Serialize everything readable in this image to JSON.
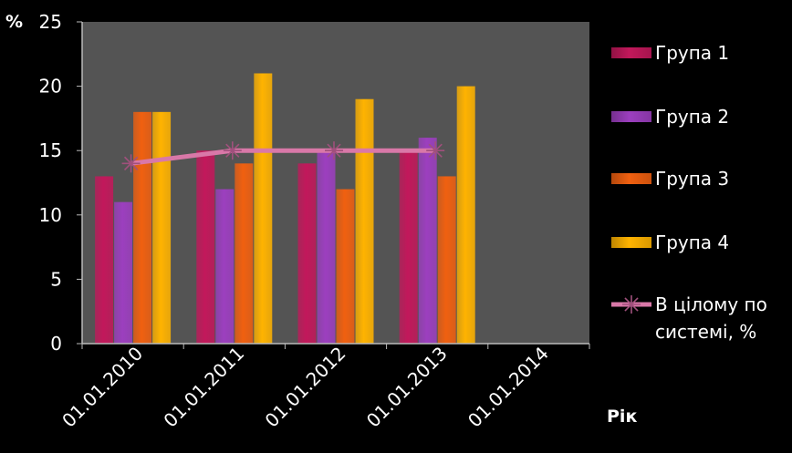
{
  "chart_data": {
    "type": "bar",
    "ylabel": "%",
    "xlabel": "Рік",
    "ylim": [
      0,
      25
    ],
    "yticks": [
      0,
      5,
      10,
      15,
      20,
      25
    ],
    "categories": [
      "01.01.2010",
      "01.01.2011",
      "01.01.2012",
      "01.01.2013",
      "01.01.2014"
    ],
    "series": [
      {
        "name": "Група 1",
        "type": "bar",
        "color": "#c2185b",
        "values": [
          13,
          15,
          14,
          15,
          null
        ]
      },
      {
        "name": "Група 2",
        "type": "bar",
        "color": "#9c3fbf",
        "values": [
          11,
          12,
          15,
          16,
          null
        ]
      },
      {
        "name": "Група 3",
        "type": "bar",
        "color": "#f06010",
        "values": [
          18,
          14,
          12,
          13,
          null
        ]
      },
      {
        "name": "Група 4",
        "type": "bar",
        "color": "#ffb300",
        "values": [
          18,
          21,
          19,
          20,
          null
        ]
      },
      {
        "name_lines": [
          "В цілому по",
          "системі, %"
        ],
        "type": "line",
        "color": "#d978a8",
        "values": [
          14,
          15,
          15,
          15,
          null
        ]
      }
    ],
    "grid": false,
    "legend": "right",
    "plot_background": "#545454"
  }
}
